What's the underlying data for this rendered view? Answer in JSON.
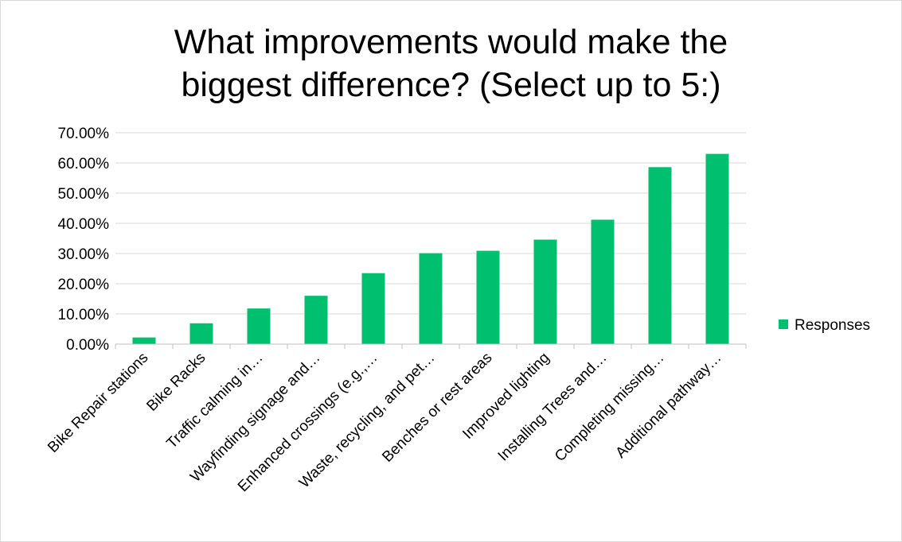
{
  "chart_data": {
    "type": "bar",
    "title": [
      "What improvements would make the",
      "biggest difference? (Select up to 5:)"
    ],
    "categories": [
      "Bike Repair stations",
      "Bike Racks",
      "Traffic calming in…",
      "Wayfinding signage and…",
      "Enhanced crossings (e.g.,…",
      "Waste, recycling, and pet…",
      "Benches or rest areas",
      "Improved lighting",
      "Installing Trees and…",
      "Completing missing…",
      "Additional pathway…"
    ],
    "series": [
      {
        "name": "Responses",
        "color": "#00c070",
        "values": [
          2.2,
          6.9,
          11.8,
          16.0,
          23.5,
          30.1,
          30.9,
          34.6,
          41.2,
          58.6,
          63.0
        ]
      }
    ],
    "ylim": [
      0,
      70
    ],
    "yticks": [
      "0.00%",
      "10.00%",
      "20.00%",
      "30.00%",
      "40.00%",
      "50.00%",
      "60.00%",
      "70.00%"
    ],
    "grid": true,
    "legend": "right"
  }
}
